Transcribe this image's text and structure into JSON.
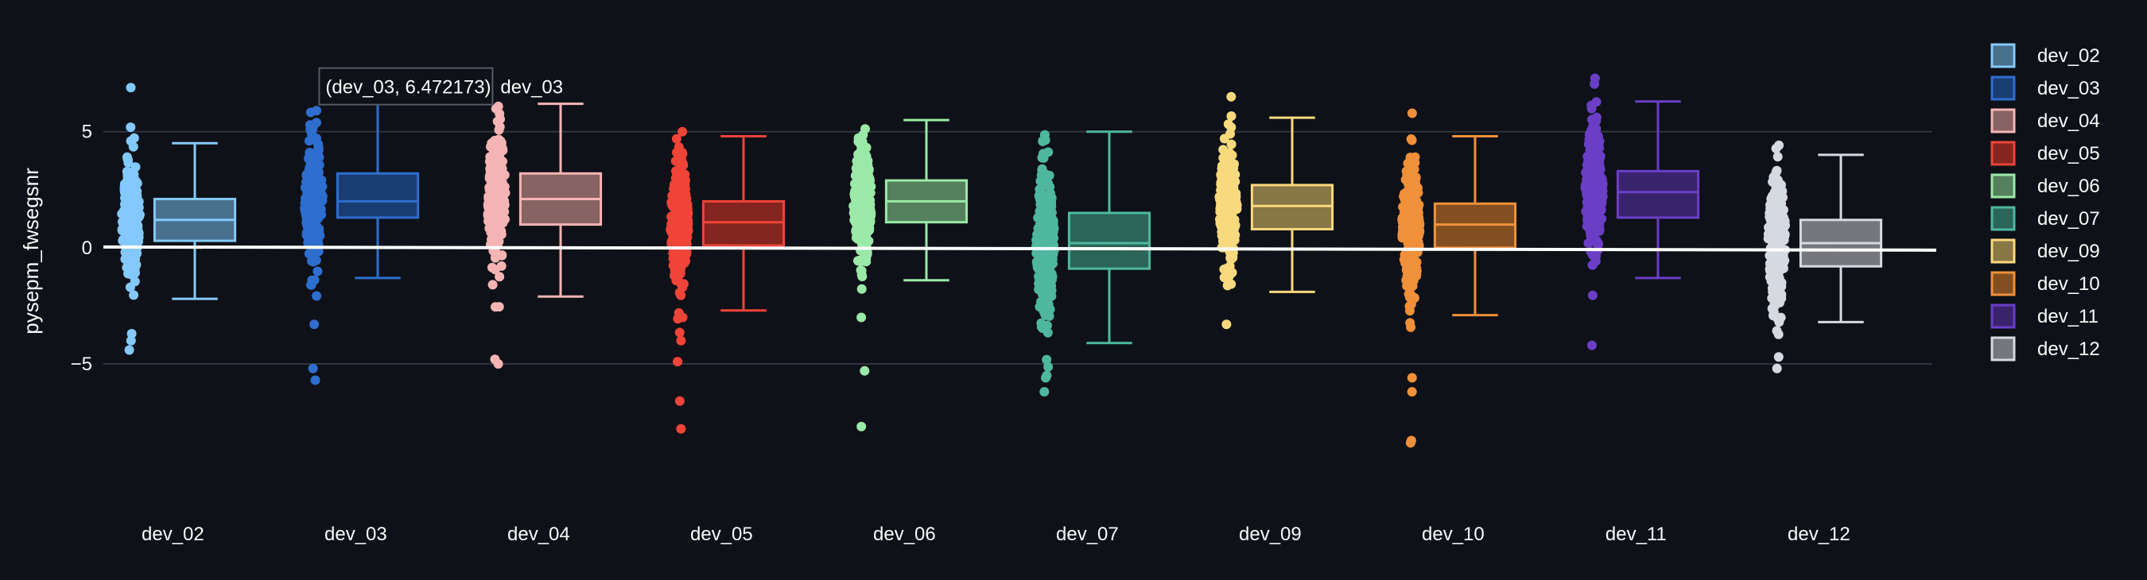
{
  "chart_data": {
    "type": "box",
    "ylabel": "pysepm_fwsegsnr",
    "xlabel": "",
    "ylim": [
      -10.2,
      9.3
    ],
    "yticks": [
      -5,
      0,
      5
    ],
    "ytick_labels": [
      "−5",
      "0",
      "5"
    ],
    "grid": true,
    "legend_position": "right",
    "background": "#0e1117",
    "grid_color": "#31333f",
    "reference_line": {
      "y": 0,
      "color": "#ffffff"
    },
    "categories": [
      "dev_02",
      "dev_03",
      "dev_04",
      "dev_05",
      "dev_06",
      "dev_07",
      "dev_09",
      "dev_10",
      "dev_11",
      "dev_12"
    ],
    "series": [
      {
        "name": "dev_02",
        "color": "#83c9ff",
        "box": {
          "min": -2.2,
          "q1": 0.3,
          "median": 1.2,
          "q3": 2.1,
          "max": 4.5
        },
        "points": {
          "min": -4.5,
          "max": 6.9
        },
        "outliers": [
          6.9,
          -3.7,
          -4.0,
          -4.4
        ]
      },
      {
        "name": "dev_03",
        "color": "#2e6ecf",
        "box": {
          "min": -1.3,
          "q1": 1.3,
          "median": 2.0,
          "q3": 3.2,
          "max": 6.472173
        },
        "points": {
          "min": -5.6,
          "max": 6.7
        },
        "outliers": [
          -3.3,
          -5.2,
          -5.7
        ]
      },
      {
        "name": "dev_04",
        "color": "#f5b4b4",
        "box": {
          "min": -2.1,
          "q1": 1.0,
          "median": 2.1,
          "q3": 3.2,
          "max": 6.2
        },
        "points": {
          "min": -5.0,
          "max": 6.3
        },
        "outliers": [
          -4.8,
          -5.0
        ]
      },
      {
        "name": "dev_05",
        "color": "#f04438",
        "box": {
          "min": -2.7,
          "q1": 0.1,
          "median": 1.1,
          "q3": 2.0,
          "max": 4.8
        },
        "points": {
          "min": -7.8,
          "max": 5.7
        },
        "outliers": [
          -4.0,
          -4.9,
          -6.6,
          -7.8
        ]
      },
      {
        "name": "dev_06",
        "color": "#9be9a8",
        "box": {
          "min": -1.4,
          "q1": 1.1,
          "median": 2.0,
          "q3": 2.9,
          "max": 5.5
        },
        "points": {
          "min": -7.7,
          "max": 6.5
        },
        "outliers": [
          -3.0,
          -5.3,
          -7.7
        ]
      },
      {
        "name": "dev_07",
        "color": "#4fb7a0",
        "box": {
          "min": -4.1,
          "q1": -0.9,
          "median": 0.2,
          "q3": 1.5,
          "max": 5.0
        },
        "points": {
          "min": -6.3,
          "max": 5.6
        },
        "outliers": [
          -5.5,
          -5.6,
          -6.2
        ]
      },
      {
        "name": "dev_09",
        "color": "#f9d97e",
        "box": {
          "min": -1.9,
          "q1": 0.8,
          "median": 1.8,
          "q3": 2.7,
          "max": 5.6
        },
        "points": {
          "min": -3.4,
          "max": 6.7
        },
        "outliers": [
          -3.3
        ]
      },
      {
        "name": "dev_10",
        "color": "#f0903a",
        "box": {
          "min": -2.9,
          "q1": 0.0,
          "median": 1.0,
          "q3": 1.9,
          "max": 4.8
        },
        "points": {
          "min": -8.4,
          "max": 6.9
        },
        "outliers": [
          -5.6,
          -6.2,
          -8.3,
          -8.4
        ]
      },
      {
        "name": "dev_11",
        "color": "#6a3fc6",
        "box": {
          "min": -1.3,
          "q1": 1.3,
          "median": 2.4,
          "q3": 3.3,
          "max": 6.3
        },
        "points": {
          "min": -4.2,
          "max": 7.3
        },
        "outliers": [
          7.3,
          -4.2
        ]
      },
      {
        "name": "dev_12",
        "color": "#d5d9e2",
        "box": {
          "min": -3.2,
          "q1": -0.8,
          "median": 0.2,
          "q3": 1.2,
          "max": 4.0
        },
        "points": {
          "min": -5.2,
          "max": 5.7
        },
        "outliers": [
          -4.7,
          -5.2
        ]
      }
    ],
    "hover": {
      "category": "dev_03",
      "value": 6.472173,
      "text": "(dev_03, 6.472173)",
      "series_label": "dev_03"
    }
  }
}
